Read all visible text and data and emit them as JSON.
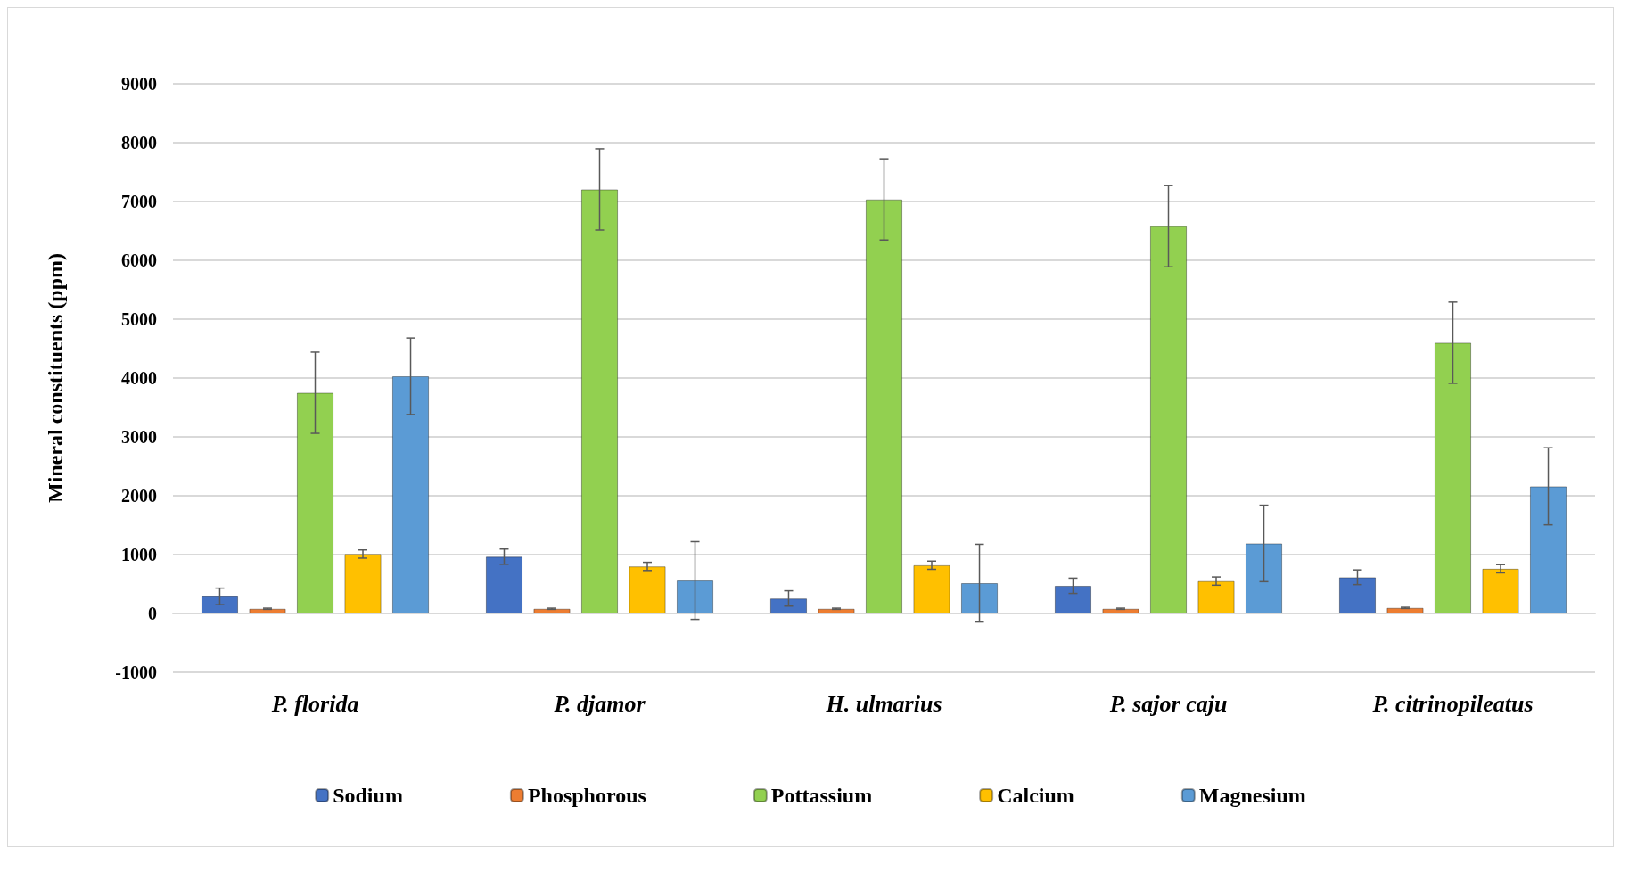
{
  "chart_data": {
    "type": "bar",
    "ylabel": "Mineral constituents (ppm)",
    "categories": [
      "P. florida",
      "P. djamor",
      "H. ulmarius",
      "P. sajor caju",
      "P. citrinopileatus"
    ],
    "series": [
      {
        "name": "Sodium",
        "color": "#4472c4",
        "values": [
          290,
          965,
          255,
          470,
          615
        ],
        "errors": [
          140,
          130,
          130,
          130,
          125
        ]
      },
      {
        "name": "Phosphorous",
        "color": "#ed7d31",
        "values": [
          80,
          80,
          80,
          80,
          95
        ],
        "errors": [
          10,
          10,
          10,
          10,
          10
        ]
      },
      {
        "name": "Pottassium",
        "color": "#92d050",
        "values": [
          3750,
          7205,
          7035,
          6580,
          4600
        ],
        "errors": [
          690,
          690,
          690,
          690,
          690
        ]
      },
      {
        "name": "Calcium",
        "color": "#ffc000",
        "values": [
          1010,
          800,
          820,
          550,
          760
        ],
        "errors": [
          70,
          70,
          70,
          70,
          70
        ]
      },
      {
        "name": "Magnesium",
        "color": "#5b9bd5",
        "values": [
          4030,
          560,
          515,
          1190,
          2160
        ],
        "errors": [
          650,
          660,
          660,
          650,
          655
        ]
      }
    ],
    "ylim": [
      -1000,
      9000
    ],
    "yticks": [
      -1000,
      0,
      1000,
      2000,
      3000,
      4000,
      5000,
      6000,
      7000,
      8000,
      9000
    ],
    "grid": "y",
    "legend": "bottom"
  }
}
